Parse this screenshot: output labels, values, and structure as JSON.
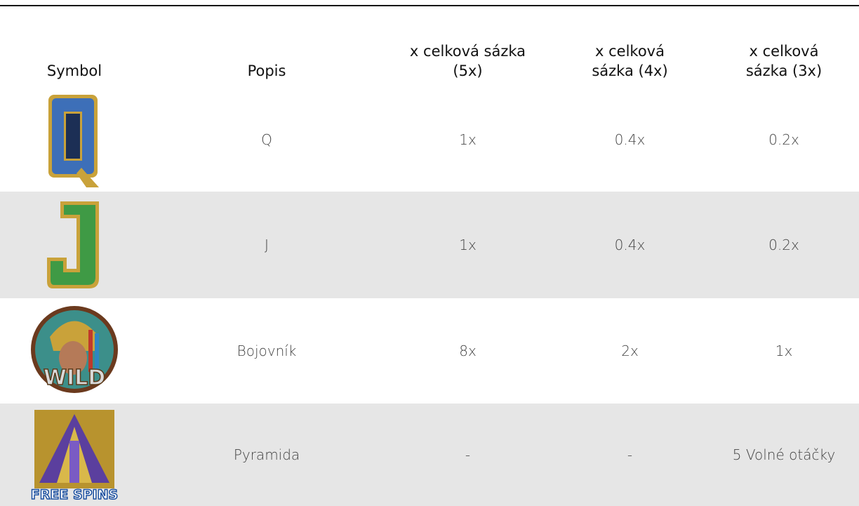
{
  "table": {
    "headers": [
      "Symbol",
      "Popis",
      "x celková sázka (5x)",
      "x celková sázka (4x)",
      "x celková sázka (3x)"
    ],
    "rows": [
      {
        "description": "Q",
        "payouts": [
          "1x",
          "0.4x",
          "0.2x"
        ]
      },
      {
        "description": "J",
        "payouts": [
          "1x",
          "0.4x",
          "0.2x"
        ]
      },
      {
        "description": "Bojovník",
        "badge": "WILD",
        "payouts": [
          "8x",
          "2x",
          "1x"
        ]
      },
      {
        "description": "Pyramida",
        "badge": "FREE SPINS",
        "payouts": [
          "-",
          "-",
          "5 Volné otáčky"
        ]
      }
    ]
  }
}
